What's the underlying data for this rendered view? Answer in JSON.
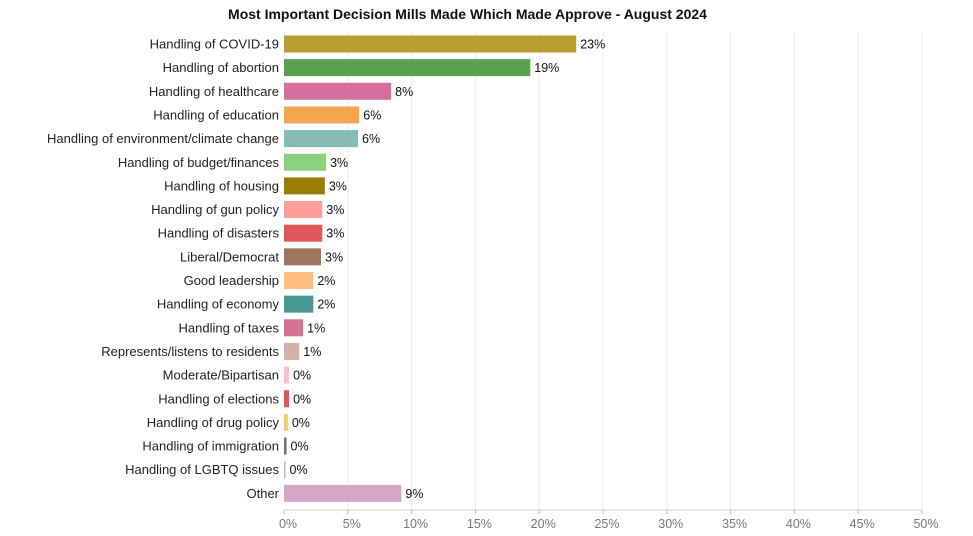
{
  "chart_data": {
    "type": "bar",
    "orientation": "horizontal",
    "title": "Most Important Decision Mills Made Which Made Approve - August 2024",
    "xlabel": "",
    "ylabel": "",
    "xlim": [
      0,
      50
    ],
    "grid": true,
    "categories": [
      "Handling of COVID-19",
      "Handling of abortion",
      "Handling of healthcare",
      "Handling of education",
      "Handling of environment/climate change",
      "Handling of budget/finances",
      "Handling of housing",
      "Handling of gun policy",
      "Handling of disasters",
      "Liberal/Democrat",
      "Good leadership",
      "Handling of economy",
      "Handling of taxes",
      "Represents/listens to residents",
      "Moderate/Bipartisan",
      "Handling of elections",
      "Handling of drug policy",
      "Handling of immigration",
      "Handling of LGBTQ issues",
      "Other"
    ],
    "values": [
      22.9,
      19.3,
      8.4,
      5.9,
      5.8,
      3.3,
      3.2,
      3.0,
      3.0,
      2.9,
      2.3,
      2.3,
      1.5,
      1.2,
      0.4,
      0.4,
      0.3,
      0.2,
      0.1,
      9.2
    ],
    "data_labels": [
      "23%",
      "19%",
      "8%",
      "6%",
      "6%",
      "3%",
      "3%",
      "3%",
      "3%",
      "3%",
      "2%",
      "2%",
      "1%",
      "1%",
      "0%",
      "0%",
      "0%",
      "0%",
      "0%",
      "9%"
    ],
    "colors": [
      "#b79e2f",
      "#59a14f",
      "#d4709b",
      "#f5a54d",
      "#86bcb6",
      "#8cd17d",
      "#9d7c05",
      "#ff9d9a",
      "#e15759",
      "#9d7660",
      "#ffbe7d",
      "#499894",
      "#d37295",
      "#d4b0a6",
      "#fabfd2",
      "#e15759",
      "#f1ce63",
      "#79706e",
      "#d7b5a6",
      "#d4a6c8"
    ],
    "x_ticks": [
      0,
      5,
      10,
      15,
      20,
      25,
      30,
      35,
      40,
      45,
      50
    ],
    "x_tick_labels": [
      "0%",
      "5%",
      "10%",
      "15%",
      "20%",
      "25%",
      "30%",
      "35%",
      "40%",
      "45%",
      "50%"
    ]
  }
}
